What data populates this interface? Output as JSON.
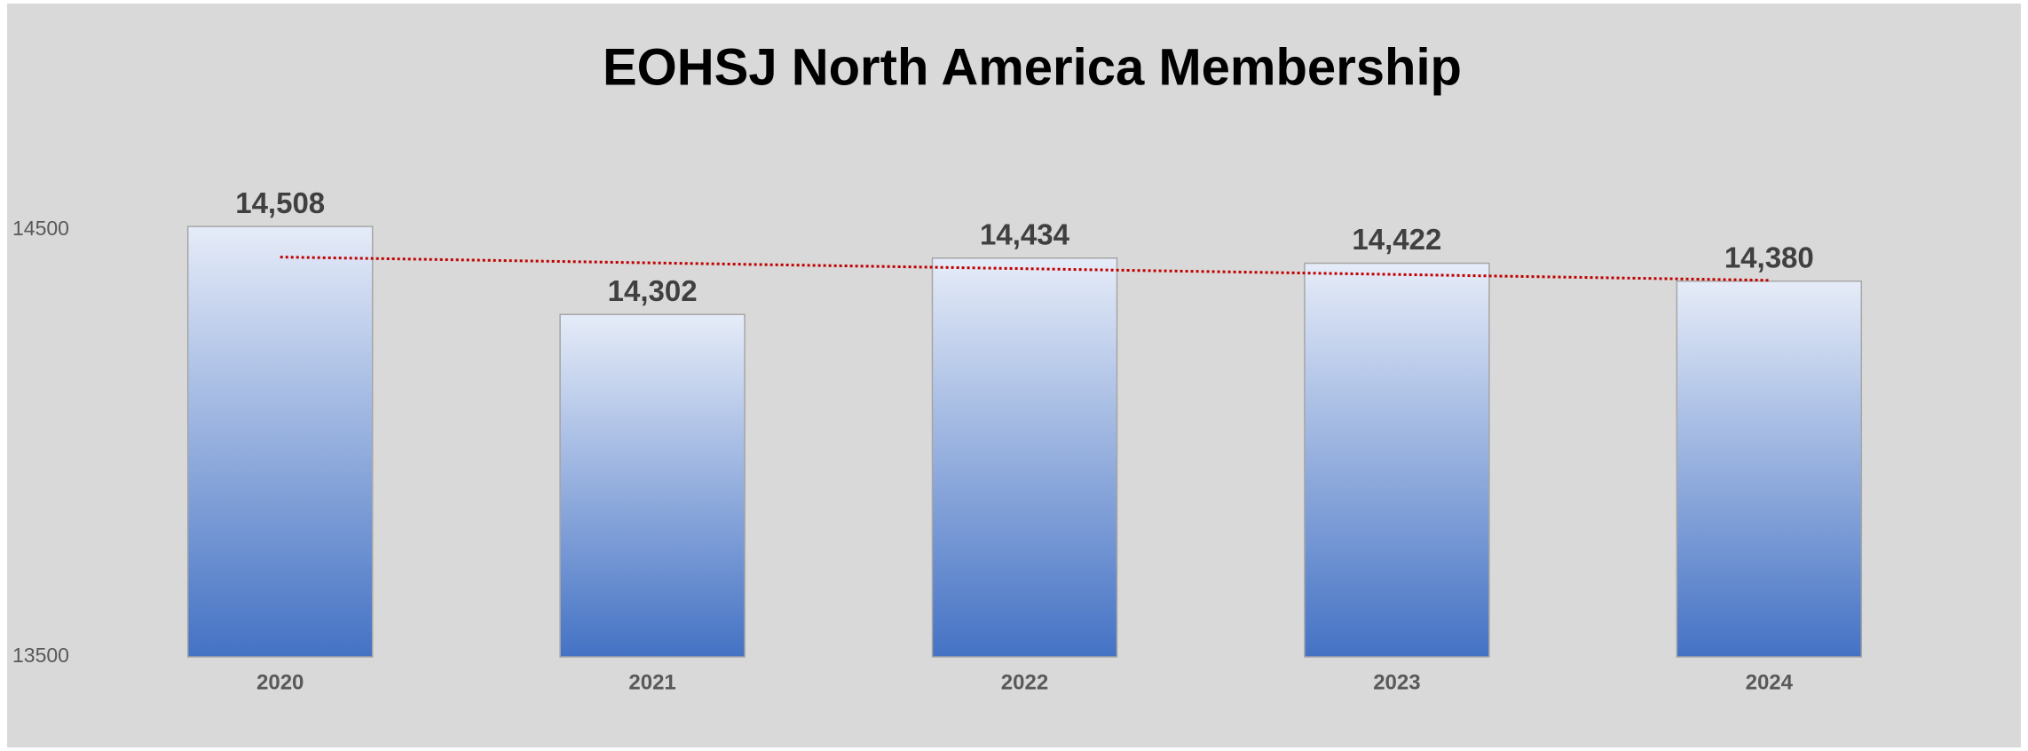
{
  "chart_data": {
    "type": "bar",
    "title": "EOHSJ  North America Membership",
    "categories": [
      "2020",
      "2021",
      "2022",
      "2023",
      "2024"
    ],
    "values": [
      14508,
      14302,
      14434,
      14422,
      14380
    ],
    "value_labels": [
      "14,508",
      "14,302",
      "14,434",
      "14,422",
      "14,380"
    ],
    "color": "#4472c4",
    "ylim": [
      13500,
      14500
    ],
    "yticks": [
      13500,
      14500
    ],
    "grid": false,
    "trendline": true,
    "trendline_color": "#c00000"
  }
}
